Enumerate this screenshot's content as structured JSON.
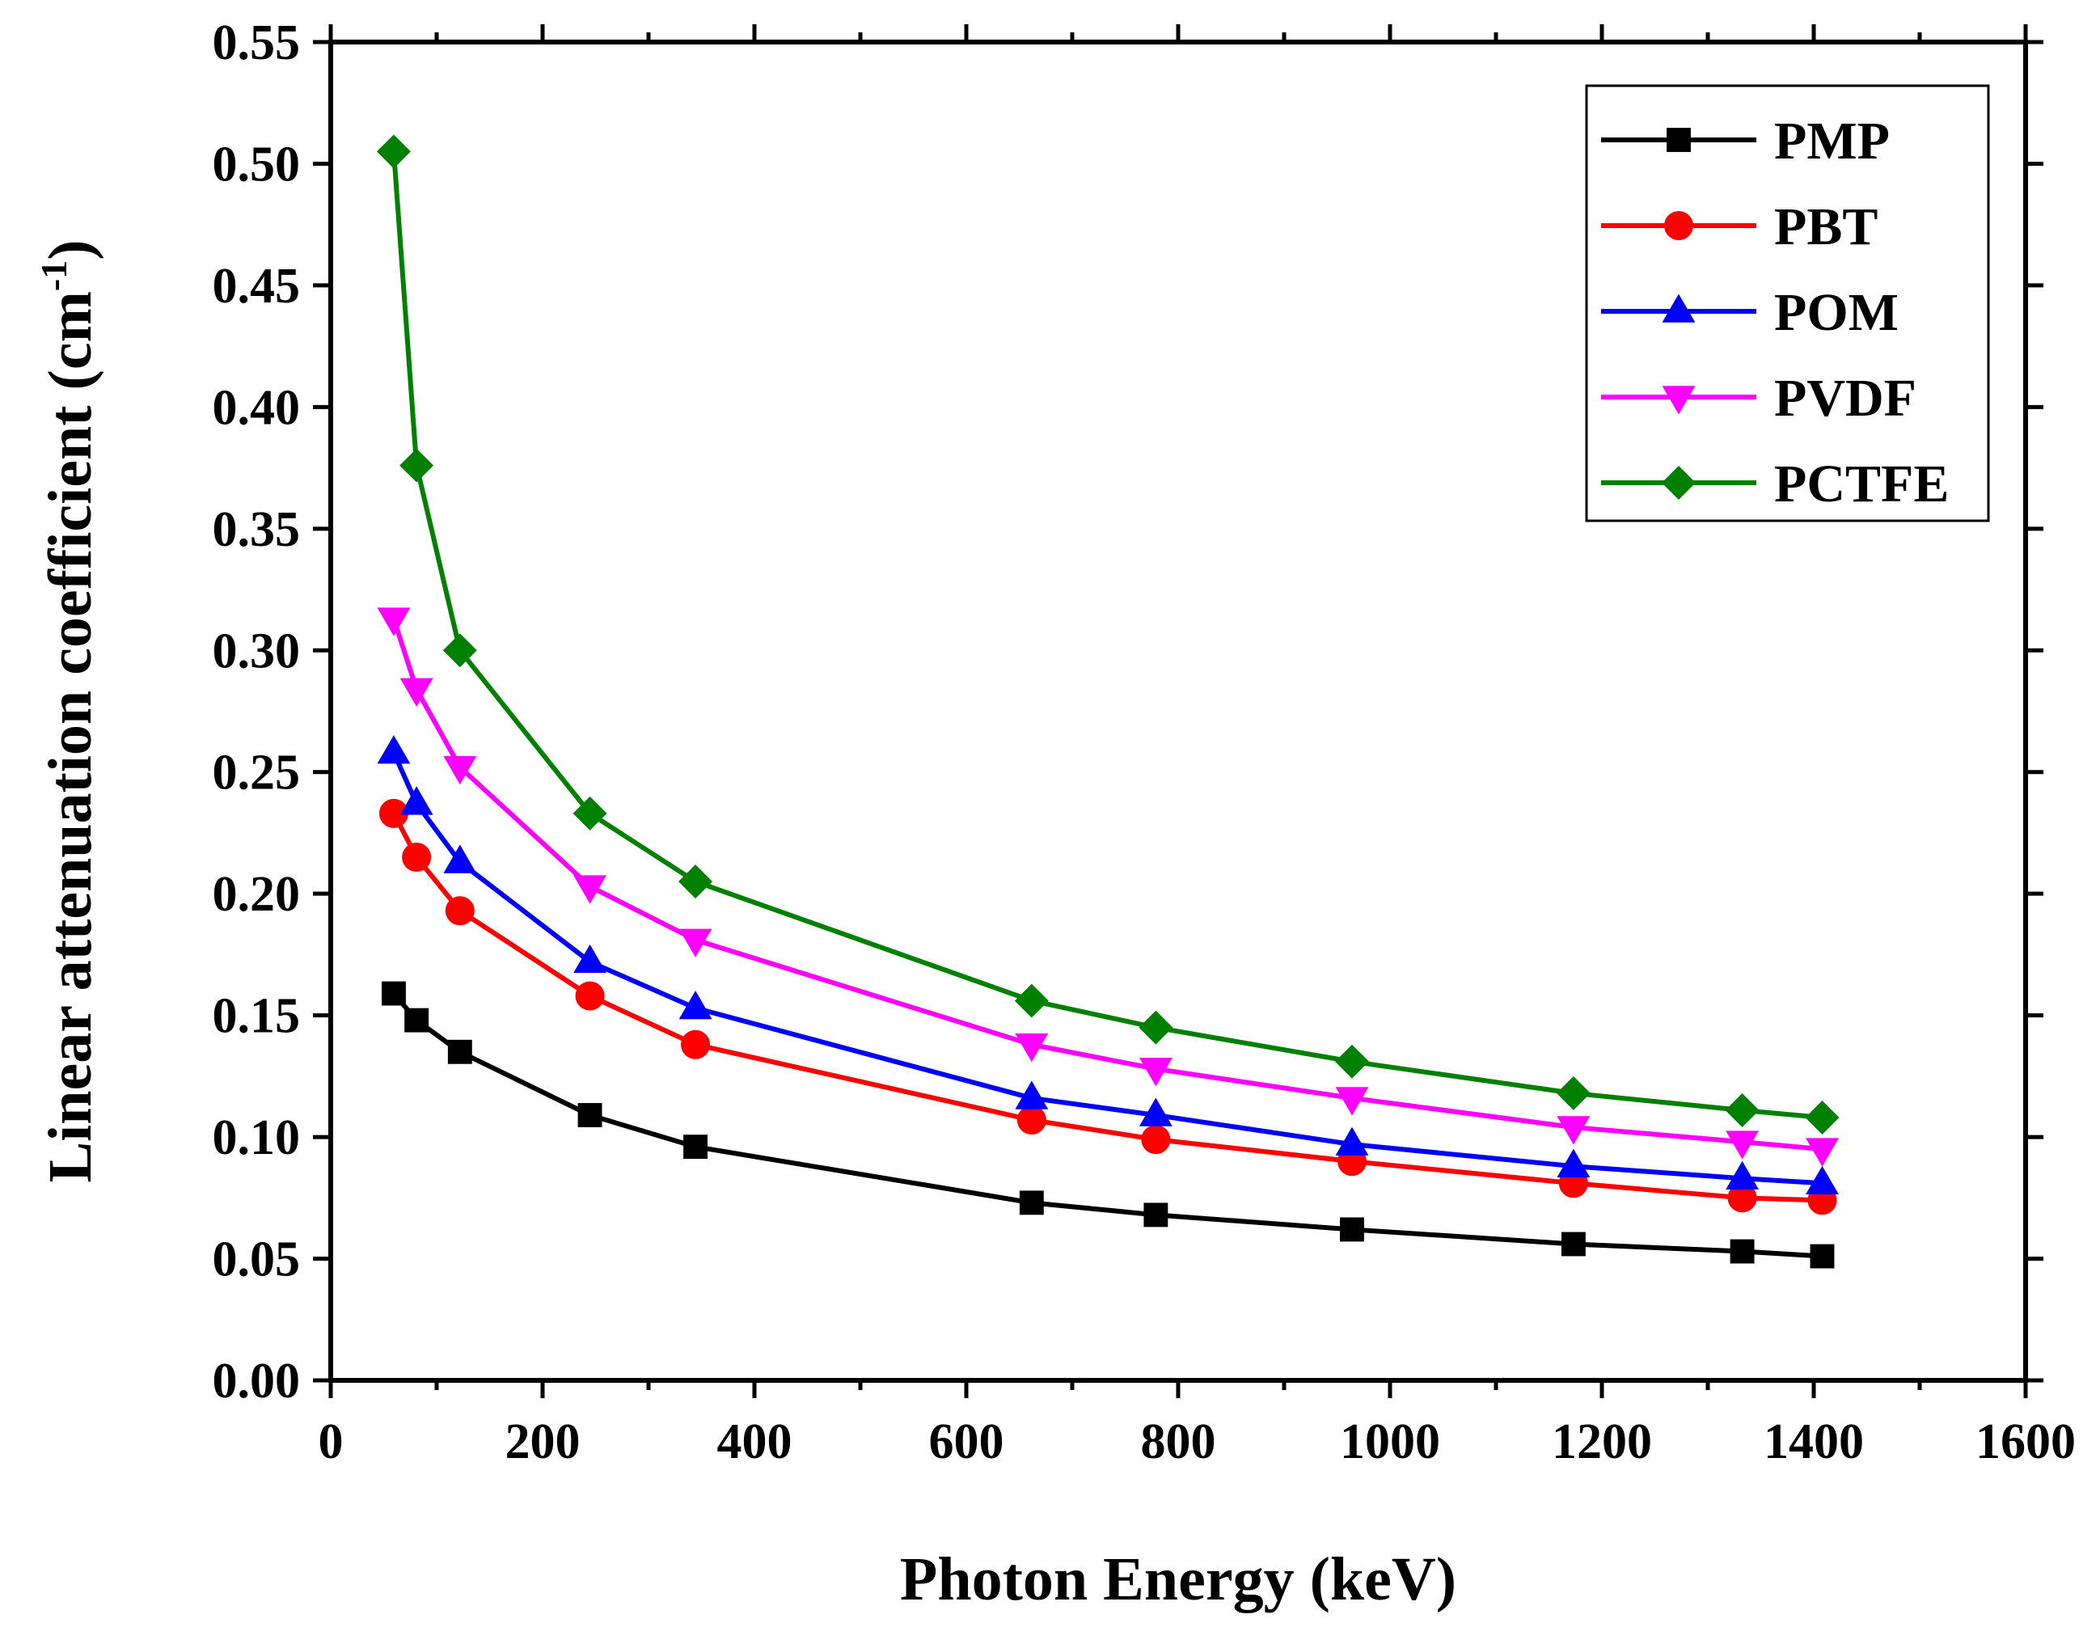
{
  "chart_data": {
    "type": "line",
    "title": "",
    "xlabel": "Photon Energy (keV)",
    "ylabel_main": "Linear attenuation coefficient (cm",
    "ylabel_sup": "-1",
    "ylabel_close": ")",
    "xlim": [
      0,
      1600
    ],
    "ylim": [
      0,
      0.55
    ],
    "xticks": [
      0,
      200,
      400,
      600,
      800,
      1000,
      1200,
      1400,
      1600
    ],
    "xtick_labels": [
      "0",
      "200",
      "400",
      "600",
      "800",
      "1000",
      "1200",
      "1400",
      "1600"
    ],
    "yticks": [
      0,
      0.05,
      0.1,
      0.15,
      0.2,
      0.25,
      0.3,
      0.35,
      0.4,
      0.45,
      0.5,
      0.55
    ],
    "ytick_labels": [
      "0.00",
      "0.05",
      "0.10",
      "0.15",
      "0.20",
      "0.25",
      "0.30",
      "0.35",
      "0.40",
      "0.45",
      "0.50",
      "0.55"
    ],
    "grid": false,
    "legend_position": "top-right",
    "x": [
      59.5,
      81,
      122,
      244.7,
      344.3,
      661.7,
      778.9,
      964.1,
      1173.2,
      1332.5,
      1408
    ],
    "series": [
      {
        "name": "PMP",
        "color": "#000000",
        "marker": "square",
        "values": [
          0.159,
          0.148,
          0.135,
          0.109,
          0.096,
          0.073,
          0.068,
          0.062,
          0.056,
          0.053,
          0.051
        ]
      },
      {
        "name": "PBT",
        "color": "#ff0000",
        "marker": "circle",
        "values": [
          0.233,
          0.215,
          0.193,
          0.158,
          0.138,
          0.107,
          0.099,
          0.09,
          0.081,
          0.075,
          0.074
        ]
      },
      {
        "name": "POM",
        "color": "#0000ff",
        "marker": "triangle-up",
        "values": [
          0.258,
          0.237,
          0.213,
          0.172,
          0.153,
          0.116,
          0.109,
          0.097,
          0.088,
          0.083,
          0.081
        ]
      },
      {
        "name": "PVDF",
        "color": "#ff00ff",
        "marker": "triangle-down",
        "values": [
          0.313,
          0.284,
          0.252,
          0.203,
          0.181,
          0.138,
          0.128,
          0.116,
          0.104,
          0.098,
          0.095
        ]
      },
      {
        "name": "PCTFE",
        "color": "#008000",
        "marker": "diamond",
        "values": [
          0.505,
          0.376,
          0.3,
          0.233,
          0.205,
          0.156,
          0.145,
          0.131,
          0.118,
          0.111,
          0.108
        ]
      }
    ]
  }
}
